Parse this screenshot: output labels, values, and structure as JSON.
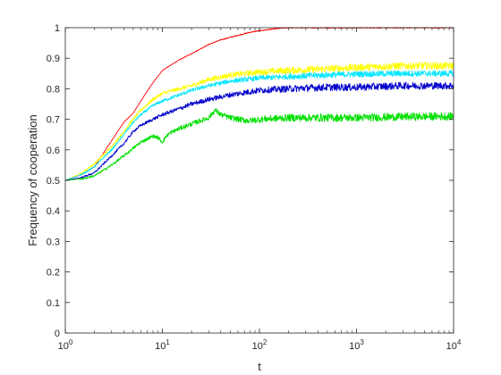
{
  "chart_data": {
    "type": "line",
    "xlabel": "t",
    "ylabel": "Frequency of cooperation",
    "x_scale": "log",
    "xlim": [
      1,
      10000
    ],
    "ylim": [
      0,
      1
    ],
    "x_ticks": [
      {
        "value": 1,
        "base": "10",
        "exp": "0"
      },
      {
        "value": 10,
        "base": "10",
        "exp": "1"
      },
      {
        "value": 100,
        "base": "10",
        "exp": "2"
      },
      {
        "value": 1000,
        "base": "10",
        "exp": "3"
      },
      {
        "value": 10000,
        "base": "10",
        "exp": "4"
      }
    ],
    "y_ticks": [
      "0",
      "0.1",
      "0.2",
      "0.3",
      "0.4",
      "0.5",
      "0.6",
      "0.7",
      "0.8",
      "0.9",
      "1"
    ],
    "grid": false,
    "series": [
      {
        "color": "#ff0000",
        "noise": 0.002,
        "points": [
          [
            1,
            0.5
          ],
          [
            1.5,
            0.52
          ],
          [
            2,
            0.545
          ],
          [
            3,
            0.63
          ],
          [
            4,
            0.69
          ],
          [
            5,
            0.72
          ],
          [
            6,
            0.76
          ],
          [
            8,
            0.82
          ],
          [
            10,
            0.86
          ],
          [
            15,
            0.895
          ],
          [
            20,
            0.915
          ],
          [
            30,
            0.945
          ],
          [
            40,
            0.96
          ],
          [
            60,
            0.975
          ],
          [
            80,
            0.985
          ],
          [
            100,
            0.99
          ],
          [
            150,
            0.997
          ],
          [
            200,
            1.0
          ],
          [
            10000,
            1.0
          ]
        ]
      },
      {
        "color": "#ffff00",
        "noise": 0.012,
        "points": [
          [
            1,
            0.5
          ],
          [
            1.5,
            0.525
          ],
          [
            2,
            0.555
          ],
          [
            3,
            0.61
          ],
          [
            4,
            0.66
          ],
          [
            5,
            0.7
          ],
          [
            6,
            0.73
          ],
          [
            8,
            0.765
          ],
          [
            10,
            0.785
          ],
          [
            15,
            0.8
          ],
          [
            20,
            0.81
          ],
          [
            30,
            0.83
          ],
          [
            50,
            0.845
          ],
          [
            100,
            0.855
          ],
          [
            200,
            0.86
          ],
          [
            500,
            0.865
          ],
          [
            1000,
            0.87
          ],
          [
            3000,
            0.875
          ],
          [
            10000,
            0.875
          ]
        ]
      },
      {
        "color": "#00e5ff",
        "noise": 0.01,
        "points": [
          [
            1,
            0.5
          ],
          [
            1.5,
            0.52
          ],
          [
            2,
            0.545
          ],
          [
            3,
            0.6
          ],
          [
            4,
            0.65
          ],
          [
            5,
            0.69
          ],
          [
            6,
            0.715
          ],
          [
            8,
            0.745
          ],
          [
            10,
            0.76
          ],
          [
            15,
            0.78
          ],
          [
            20,
            0.795
          ],
          [
            30,
            0.81
          ],
          [
            50,
            0.825
          ],
          [
            100,
            0.835
          ],
          [
            200,
            0.84
          ],
          [
            500,
            0.845
          ],
          [
            1000,
            0.848
          ],
          [
            3000,
            0.85
          ],
          [
            10000,
            0.85
          ]
        ]
      },
      {
        "color": "#0000cd",
        "noise": 0.012,
        "points": [
          [
            1,
            0.5
          ],
          [
            1.5,
            0.51
          ],
          [
            2,
            0.525
          ],
          [
            3,
            0.58
          ],
          [
            4,
            0.62
          ],
          [
            5,
            0.66
          ],
          [
            6,
            0.68
          ],
          [
            8,
            0.7
          ],
          [
            10,
            0.715
          ],
          [
            15,
            0.735
          ],
          [
            20,
            0.75
          ],
          [
            30,
            0.765
          ],
          [
            50,
            0.78
          ],
          [
            100,
            0.795
          ],
          [
            200,
            0.8
          ],
          [
            500,
            0.805
          ],
          [
            1000,
            0.805
          ],
          [
            3000,
            0.81
          ],
          [
            10000,
            0.81
          ]
        ]
      },
      {
        "color": "#00e000",
        "noise": 0.013,
        "points": [
          [
            1,
            0.5
          ],
          [
            1.5,
            0.505
          ],
          [
            2,
            0.515
          ],
          [
            3,
            0.55
          ],
          [
            4,
            0.58
          ],
          [
            5,
            0.605
          ],
          [
            6,
            0.625
          ],
          [
            8,
            0.645
          ],
          [
            9,
            0.64
          ],
          [
            10,
            0.625
          ],
          [
            11,
            0.645
          ],
          [
            12,
            0.655
          ],
          [
            15,
            0.67
          ],
          [
            20,
            0.685
          ],
          [
            30,
            0.705
          ],
          [
            35,
            0.73
          ],
          [
            40,
            0.715
          ],
          [
            50,
            0.705
          ],
          [
            60,
            0.7
          ],
          [
            80,
            0.695
          ],
          [
            100,
            0.7
          ],
          [
            200,
            0.705
          ],
          [
            500,
            0.705
          ],
          [
            1000,
            0.705
          ],
          [
            3000,
            0.708
          ],
          [
            10000,
            0.71
          ]
        ]
      }
    ]
  }
}
